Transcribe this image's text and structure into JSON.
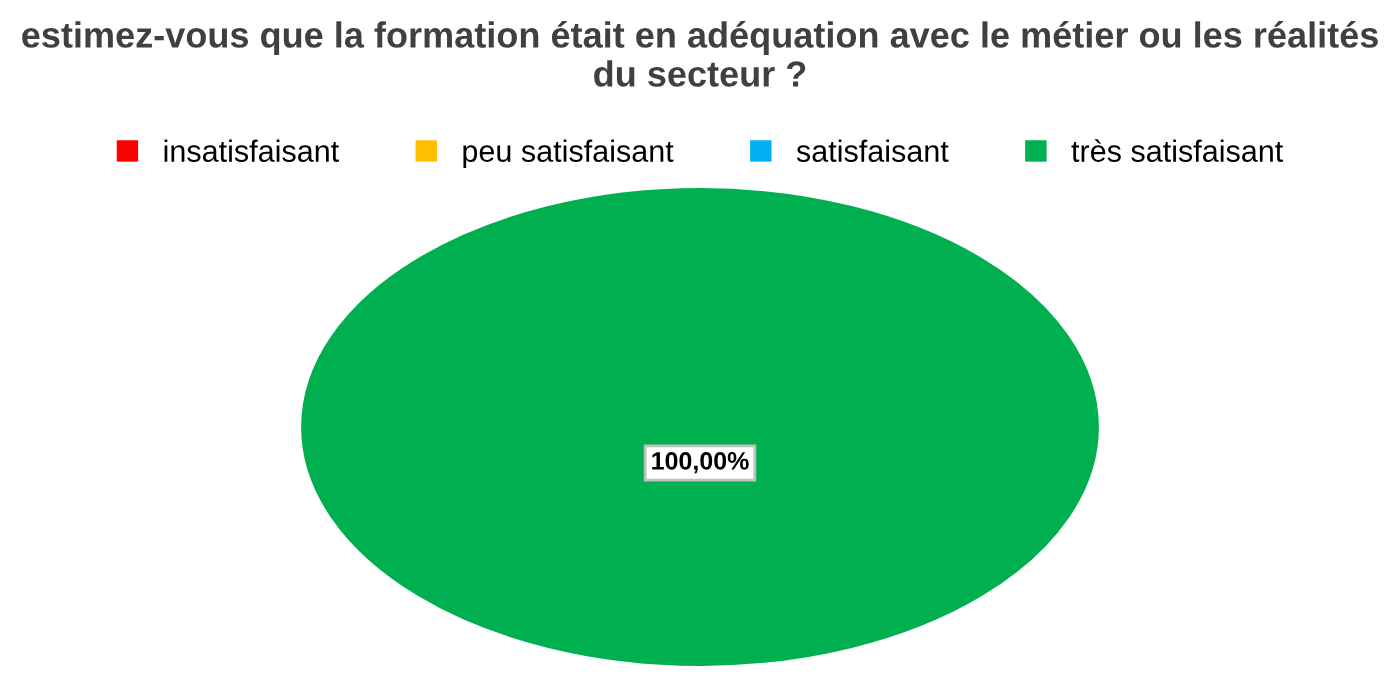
{
  "chart_data": {
    "type": "pie",
    "title": "estimez-vous que la formation était en adéquation avec le métier ou les réalités du secteur ?",
    "categories": [
      "insatisfaisant",
      "peu satisfaisant",
      "satisfaisant",
      "très satisfaisant"
    ],
    "values": [
      0,
      0,
      0,
      100
    ],
    "colors": [
      "#ff0000",
      "#ffc000",
      "#00b0f0",
      "#00b050"
    ],
    "value_labels": [
      null,
      null,
      null,
      "100,00%"
    ],
    "legend": "top"
  }
}
